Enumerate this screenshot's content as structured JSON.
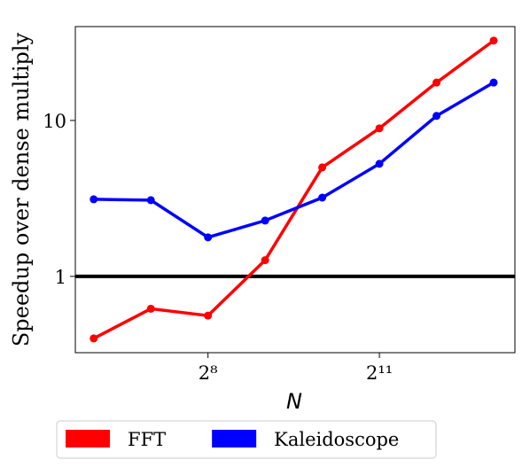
{
  "chart_data": {
    "type": "line",
    "xlabel": "N",
    "ylabel": "Speedup over dense multiply",
    "x": [
      64,
      128,
      256,
      512,
      1024,
      2048,
      4096,
      8192
    ],
    "series": [
      {
        "name": "FFT",
        "color": "#ff0000",
        "values": [
          0.4,
          0.62,
          0.56,
          1.27,
          5.0,
          8.9,
          17.5,
          32.5
        ]
      },
      {
        "name": "Kaleidoscope",
        "color": "#0000ff",
        "values": [
          3.12,
          3.08,
          1.78,
          2.28,
          3.2,
          5.27,
          10.7,
          17.5
        ]
      }
    ],
    "xscale": "log2",
    "yscale": "log",
    "xlim": [
      51.2,
      10600
    ],
    "ylim": [
      0.324,
      40
    ],
    "xticks": [
      {
        "value": 256,
        "label": "2⁸"
      },
      {
        "value": 2048,
        "label": "2¹¹"
      }
    ],
    "yticks": [
      1,
      10
    ],
    "hline": {
      "value": 1,
      "color": "#000000"
    },
    "legend": "below"
  }
}
